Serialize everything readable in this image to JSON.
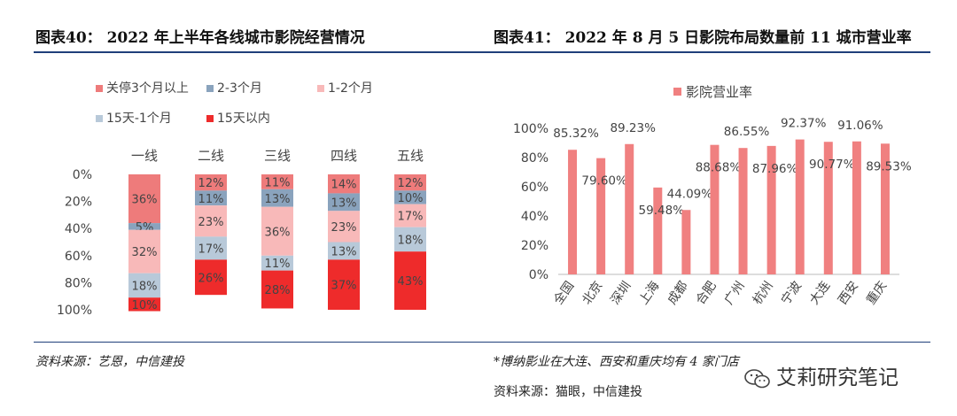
{
  "left": {
    "title": "图表40：  2022 年上半年各线城市影院经营情况",
    "source": "资料来源：艺恩，中信建投"
  },
  "right": {
    "title": "图表41：  2022 年 8 月 5 日影院布局数量前 11 城市营业率",
    "footnote": "*博纳影业在大连、西安和重庆均有 4 家门店",
    "source": "资料来源：猫眼，中信建投"
  },
  "watermark": {
    "text": "艾莉研究笔记",
    "icon": "wechat-icon"
  },
  "colors": {
    "closed_3m_plus": "#ee7b7b",
    "m2_3": "#8aa3bd",
    "m1_2": "#f8b9b9",
    "d15_1m": "#b8c9d9",
    "within_15d": "#ee2b2b",
    "rate_bar": "#f08080",
    "rule": "#1f3f7a"
  },
  "chart_data": [
    {
      "type": "bar",
      "stacked": true,
      "orientation": "vertical",
      "categories": [
        "一线",
        "二线",
        "三线",
        "四线",
        "五线"
      ],
      "series": [
        {
          "name": "关停3个月以上",
          "values": [
            36,
            12,
            11,
            14,
            12
          ],
          "labels": [
            "36%",
            "12%",
            "11%",
            "14%",
            "12%"
          ]
        },
        {
          "name": "2-3个月",
          "values": [
            5,
            11,
            13,
            13,
            10
          ],
          "labels": [
            "5%",
            "11%",
            "13%",
            "13%",
            "10%"
          ]
        },
        {
          "name": "1-2个月",
          "values": [
            32,
            23,
            36,
            23,
            17
          ],
          "labels": [
            "32%",
            "23%",
            "36%",
            "23%",
            "17%"
          ]
        },
        {
          "name": "15天-1个月",
          "values": [
            18,
            17,
            11,
            13,
            18
          ],
          "labels": [
            "18%",
            "17%",
            "11%",
            "13%",
            "18%"
          ]
        },
        {
          "name": "15天以内",
          "values": [
            10,
            26,
            28,
            37,
            43
          ],
          "labels": [
            "10%",
            "26%",
            "28%",
            "37%",
            "43%"
          ]
        }
      ],
      "y_ticks": [
        "0%",
        "20%",
        "40%",
        "60%",
        "80%",
        "100%"
      ],
      "ylim": [
        0,
        100
      ],
      "y_inverted": true,
      "legend_position": "top"
    },
    {
      "type": "bar",
      "categories": [
        "全国",
        "北京",
        "深圳",
        "上海",
        "成都",
        "合肥",
        "广州",
        "杭州",
        "宁波",
        "大连",
        "西安",
        "重庆"
      ],
      "series": [
        {
          "name": "影院营业率",
          "values": [
            85.32,
            79.6,
            89.23,
            59.48,
            44.09,
            88.68,
            86.55,
            87.96,
            92.37,
            90.77,
            91.06,
            89.53
          ],
          "labels": [
            "85.32%",
            "79.60%",
            "89.23%",
            "59.48%",
            "44.09%",
            "88.68%",
            "86.55%",
            "87.96%",
            "92.37%",
            "90.77%",
            "91.06%",
            "89.53%"
          ]
        }
      ],
      "y_ticks": [
        "0%",
        "20%",
        "40%",
        "60%",
        "80%",
        "100%"
      ],
      "ylim": [
        0,
        100
      ],
      "legend_position": "top"
    }
  ]
}
